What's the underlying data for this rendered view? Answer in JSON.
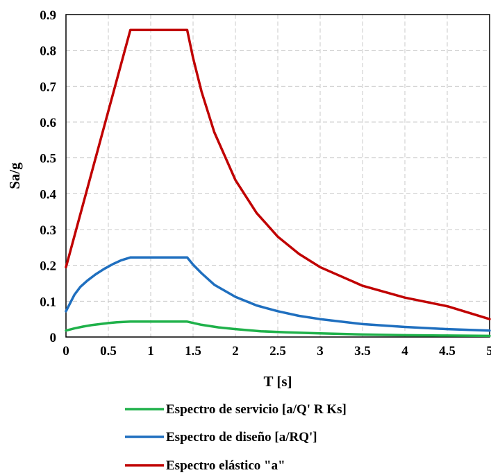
{
  "chart_data": {
    "type": "line",
    "xlabel": "T [s]",
    "ylabel": "Sa/g",
    "xlim": [
      0,
      5
    ],
    "ylim": [
      0,
      0.9
    ],
    "grid": true,
    "legend_position": "bottom",
    "x_ticks": [
      "0",
      "0.5",
      "1",
      "1.5",
      "2",
      "2.5",
      "3",
      "3.5",
      "4",
      "4.5",
      "5"
    ],
    "y_ticks": [
      "0",
      "0.1",
      "0.2",
      "0.3",
      "0.4",
      "0.5",
      "0.6",
      "0.7",
      "0.8",
      "0.9"
    ],
    "series": [
      {
        "name": "Espectro de servicio [a/Q' R Ks]",
        "color": "#1fb14a",
        "x": [
          0,
          0.1,
          0.2,
          0.3,
          0.4,
          0.5,
          0.6,
          0.76,
          0.9,
          1.1,
          1.3,
          1.43,
          1.6,
          1.8,
          2.0,
          2.3,
          2.6,
          3.0,
          3.5,
          4.0,
          4.5,
          5.0
        ],
        "y": [
          0.018,
          0.024,
          0.029,
          0.033,
          0.036,
          0.039,
          0.041,
          0.043,
          0.043,
          0.043,
          0.043,
          0.043,
          0.034,
          0.027,
          0.022,
          0.016,
          0.013,
          0.01,
          0.007,
          0.005,
          0.004,
          0.003
        ]
      },
      {
        "name": "Espectro de diseño [a/RQ']",
        "color": "#1f6fbf",
        "x": [
          0,
          0.05,
          0.1,
          0.17,
          0.25,
          0.35,
          0.45,
          0.55,
          0.65,
          0.76,
          0.9,
          1.1,
          1.3,
          1.43,
          1.5,
          1.6,
          1.75,
          2.0,
          2.25,
          2.5,
          2.75,
          3.0,
          3.5,
          4.0,
          4.5,
          5.0
        ],
        "y": [
          0.072,
          0.095,
          0.118,
          0.14,
          0.157,
          0.175,
          0.19,
          0.203,
          0.214,
          0.222,
          0.222,
          0.222,
          0.222,
          0.222,
          0.202,
          0.178,
          0.146,
          0.112,
          0.088,
          0.072,
          0.059,
          0.05,
          0.036,
          0.028,
          0.022,
          0.018
        ]
      },
      {
        "name": "Espectro elástico \"a\"",
        "color": "#c00000",
        "x": [
          0,
          0.76,
          1.43,
          1.5,
          1.6,
          1.75,
          2.0,
          2.25,
          2.5,
          2.75,
          3.0,
          3.5,
          4.0,
          4.5,
          5.0
        ],
        "y": [
          0.195,
          0.857,
          0.857,
          0.779,
          0.685,
          0.572,
          0.438,
          0.346,
          0.28,
          0.232,
          0.195,
          0.143,
          0.11,
          0.086,
          0.05
        ]
      }
    ]
  }
}
